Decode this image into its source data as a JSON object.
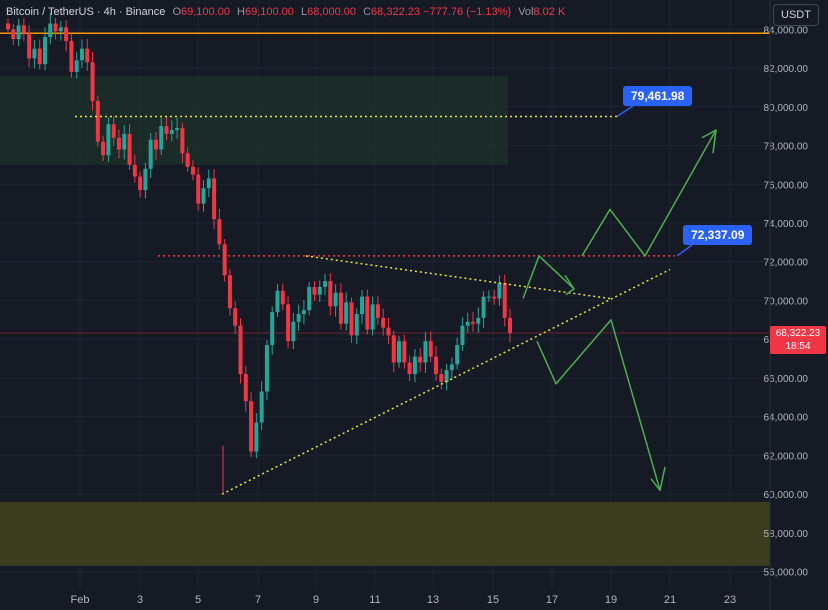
{
  "header": {
    "symbol": "Bitcoin / TetherUS · 4h · Binance",
    "open_label": "O",
    "open": "69,100.00",
    "high_label": "H",
    "high": "69,100.00",
    "low_label": "L",
    "low": "68,000.00",
    "close_label": "C",
    "close": "68,322.23",
    "change": "−777.76 (−1.13%)",
    "vol_label": "Vol",
    "vol": "8.02 K"
  },
  "currency": "USDT",
  "annotations": {
    "upper_target": "79,461.98",
    "mid_target": "72,337.09"
  },
  "current_price": {
    "value": "68,322.23",
    "countdown": "18:54"
  },
  "colors": {
    "background": "#161a25",
    "up": "#26a69a",
    "down": "#f23645",
    "dotted_yellow": "#e8e83a",
    "dotted_red": "#f23645",
    "arrow_green": "#4caf50",
    "orange_line": "#ff9800",
    "tag_blue": "#2962ff"
  },
  "chart_data": {
    "type": "candlestick",
    "ylim": [
      55000,
      84500
    ],
    "y_ticks": [
      56000,
      58000,
      60000,
      62000,
      64000,
      66000,
      68000,
      70000,
      72000,
      74000,
      76000,
      78000,
      80000,
      82000,
      84000
    ],
    "y_tick_labels": [
      "56,000.00",
      "58,000.00",
      "60,000.00",
      "62,000.00",
      "64,000.00",
      "66,000.00",
      "68,000.00",
      "70,000.00",
      "72,000.00",
      "74,000.00",
      "76,000.00",
      "78,000.00",
      "80,000.00",
      "82,000.00",
      "84,000.00"
    ],
    "x_ticks": [
      "Feb",
      "3",
      "5",
      "7",
      "9",
      "11",
      "13",
      "15",
      "17",
      "19",
      "21",
      "23"
    ],
    "closes": [
      84000,
      83500,
      84200,
      83800,
      82500,
      83000,
      82200,
      83600,
      84300,
      83900,
      84100,
      83400,
      81800,
      82400,
      83000,
      82300,
      80300,
      78200,
      77500,
      79100,
      78400,
      77800,
      78600,
      77000,
      76400,
      75700,
      76800,
      78300,
      77800,
      79000,
      78600,
      78800,
      78900,
      77600,
      76900,
      76500,
      75000,
      75800,
      76300,
      74200,
      72900,
      71300,
      69600,
      68700,
      66200,
      64800,
      62200,
      63700,
      65300,
      67700,
      69400,
      70500,
      69800,
      67900,
      68900,
      69300,
      69500,
      70700,
      70300,
      70700,
      71000,
      69700,
      70400,
      68800,
      69900,
      68200,
      69300,
      70200,
      68500,
      69800,
      69100,
      68600,
      68200,
      66800,
      67900,
      66800,
      66200,
      67100,
      66800,
      67900,
      67100,
      66200,
      65800,
      66400,
      66700,
      67700,
      68700,
      68900,
      68800,
      69100,
      70200,
      70200,
      70100,
      70900,
      69100,
      68322.23
    ],
    "resistance_line": 72300,
    "support_zone": [
      56300,
      59600
    ],
    "supply_zone": [
      77000,
      81600
    ],
    "orange_level": 83800
  }
}
